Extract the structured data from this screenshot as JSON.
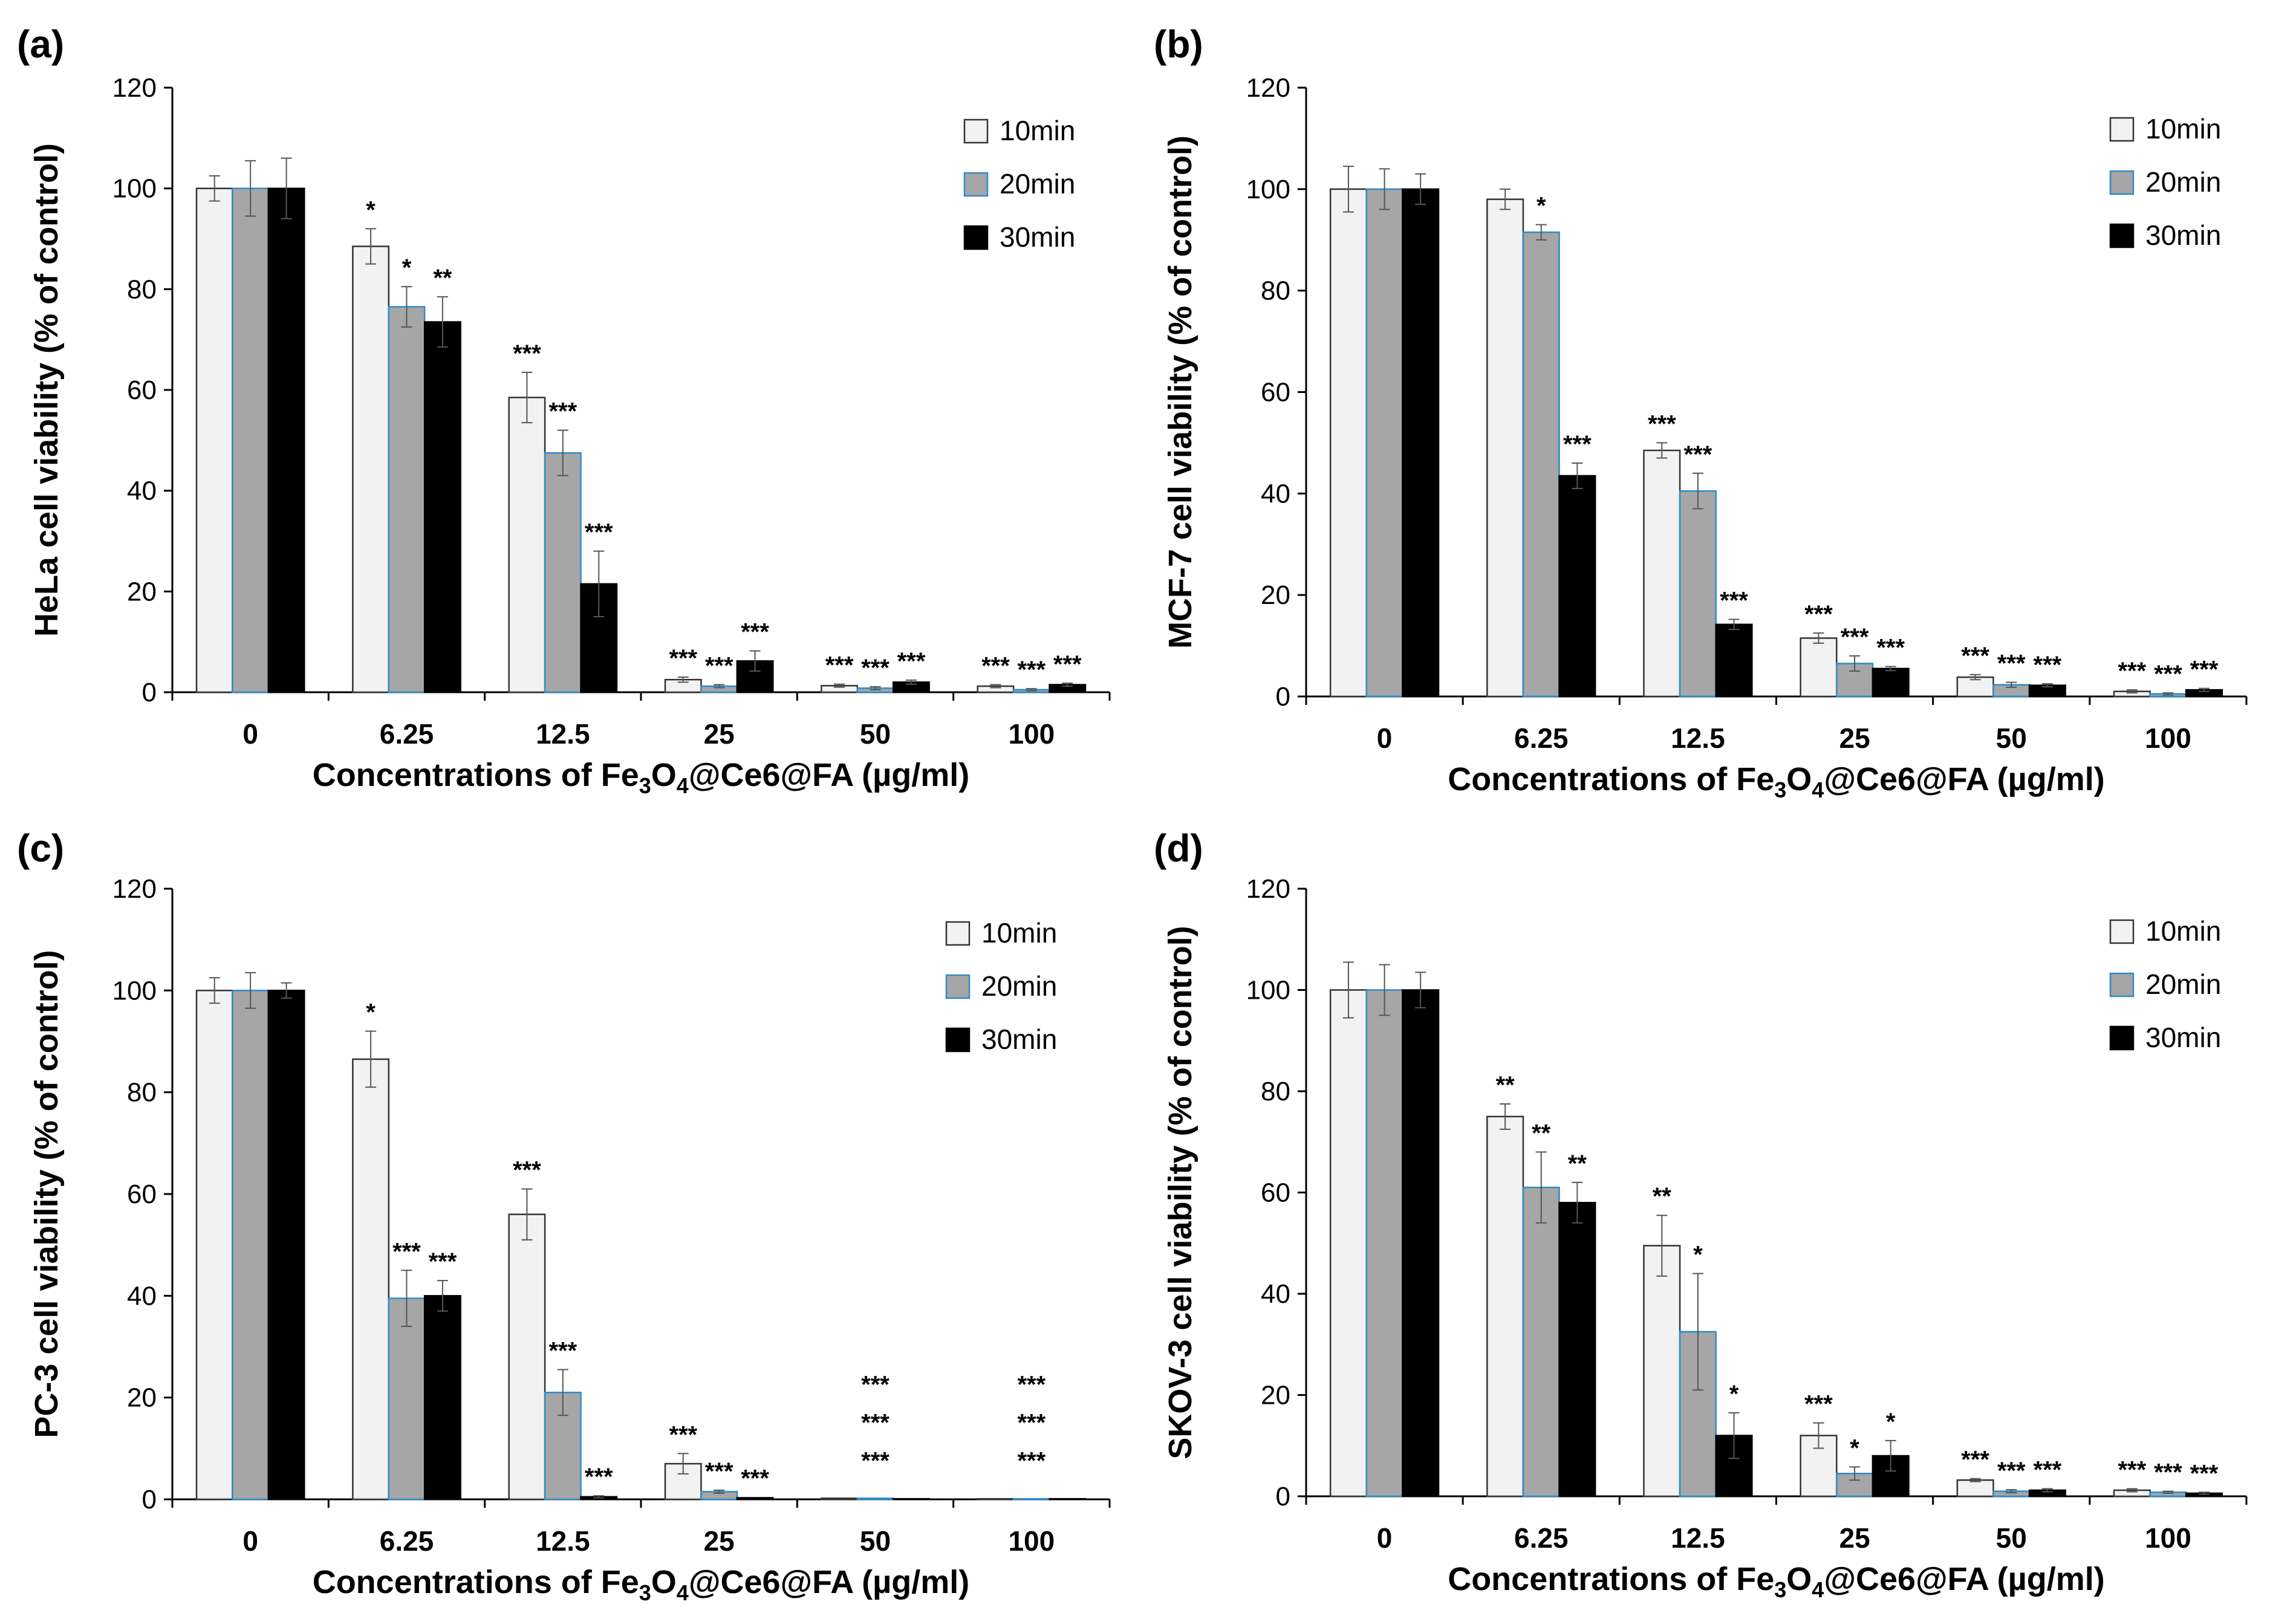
{
  "chart_data": [
    {
      "type": "bar",
      "panel_label": "(a)",
      "ylabel": "HeLa cell viability (% of control)",
      "xlabel": {
        "pre": "Concentrations of Fe",
        "sub1": "3",
        "mid": "O",
        "sub2": "4",
        "post": "@Ce6@FA (µg/ml)"
      },
      "categories": [
        "0",
        "6.25",
        "12.5",
        "25",
        "50",
        "100"
      ],
      "ylim": [
        0,
        120
      ],
      "yticks": [
        "0",
        "20",
        "40",
        "60",
        "80",
        "100",
        "120"
      ],
      "legend": [
        "10min",
        "20min",
        "30min"
      ],
      "series": [
        {
          "name": "10min",
          "values": [
            100,
            88.5,
            58.5,
            2.5,
            1.3,
            1.2
          ],
          "errors": [
            2.5,
            3.5,
            5,
            0.5,
            0.3,
            0.3
          ],
          "sig": [
            "",
            "*",
            "***",
            "***",
            "***",
            "***"
          ]
        },
        {
          "name": "20min",
          "values": [
            100,
            76.5,
            47.5,
            1.2,
            0.8,
            0.5
          ],
          "errors": [
            5.5,
            4,
            4.5,
            0.3,
            0.3,
            0.2
          ],
          "sig": [
            "",
            "*",
            "***",
            "***",
            "***",
            "***"
          ]
        },
        {
          "name": "30min",
          "values": [
            100,
            73.5,
            21.5,
            6.2,
            2.0,
            1.5
          ],
          "errors": [
            6,
            5,
            6.5,
            2,
            0.4,
            0.3
          ],
          "sig": [
            "",
            "**",
            "***",
            "***",
            "***",
            "***"
          ]
        }
      ]
    },
    {
      "type": "bar",
      "panel_label": "(b)",
      "ylabel": "MCF-7 cell viability (% of control)",
      "xlabel": {
        "pre": "Concentrations of Fe",
        "sub1": "3",
        "mid": "O",
        "sub2": "4",
        "post": "@Ce6@FA (µg/ml)"
      },
      "categories": [
        "0",
        "6.25",
        "12.5",
        "25",
        "50",
        "100"
      ],
      "ylim": [
        0,
        120
      ],
      "yticks": [
        "0",
        "20",
        "40",
        "60",
        "80",
        "100",
        "120"
      ],
      "legend": [
        "10min",
        "20min",
        "30min"
      ],
      "series": [
        {
          "name": "10min",
          "values": [
            100,
            98,
            48.5,
            11.5,
            3.8,
            1.0
          ],
          "errors": [
            4.5,
            2,
            1.5,
            1,
            0.5,
            0.3
          ],
          "sig": [
            "",
            "",
            "***",
            "***",
            "***",
            "***"
          ]
        },
        {
          "name": "20min",
          "values": [
            100,
            91.5,
            40.5,
            6.5,
            2.3,
            0.5
          ],
          "errors": [
            4,
            1.5,
            3.5,
            1.5,
            0.5,
            0.2
          ],
          "sig": [
            "",
            "*",
            "***",
            "***",
            "***",
            "***"
          ]
        },
        {
          "name": "30min",
          "values": [
            100,
            43.5,
            14.2,
            5.5,
            2.2,
            1.3
          ],
          "errors": [
            3,
            2.5,
            1,
            0.4,
            0.3,
            0.3
          ],
          "sig": [
            "",
            "***",
            "***",
            "***",
            "***",
            "***"
          ]
        }
      ]
    },
    {
      "type": "bar",
      "panel_label": "(c)",
      "ylabel": "PC-3 cell viability (% of control)",
      "xlabel": {
        "pre": "Concentrations of Fe",
        "sub1": "3",
        "mid": "O",
        "sub2": "4",
        "post": "@Ce6@FA (µg/ml)"
      },
      "categories": [
        "0",
        "6.25",
        "12.5",
        "25",
        "50",
        "100"
      ],
      "ylim": [
        0,
        120
      ],
      "yticks": [
        "0",
        "20",
        "40",
        "60",
        "80",
        "100",
        "120"
      ],
      "legend": [
        "10min",
        "20min",
        "30min"
      ],
      "series": [
        {
          "name": "10min",
          "values": [
            100,
            86.5,
            56,
            7,
            0.2,
            0.1
          ],
          "errors": [
            2.5,
            5.5,
            5,
            2,
            0.1,
            0.1
          ],
          "sig": [
            "",
            "*",
            "***",
            "***",
            "***",
            "***"
          ]
        },
        {
          "name": "20min",
          "values": [
            100,
            39.5,
            21,
            1.5,
            0.2,
            0.1
          ],
          "errors": [
            3.5,
            5.5,
            4.5,
            0.3,
            0.1,
            0.1
          ],
          "sig": [
            "",
            "***",
            "***",
            "***",
            "***",
            "***"
          ]
        },
        {
          "name": "30min",
          "values": [
            100,
            40,
            0.5,
            0.3,
            0.1,
            0.1
          ],
          "errors": [
            1.5,
            3,
            0.2,
            0.1,
            0.1,
            0.1
          ],
          "sig": [
            "",
            "***",
            "***",
            "***",
            "***",
            "***"
          ]
        }
      ]
    },
    {
      "type": "bar",
      "panel_label": "(d)",
      "ylabel": "SKOV-3 cell viability (% of control)",
      "xlabel": {
        "pre": "Concentrations of Fe",
        "sub1": "3",
        "mid": "O",
        "sub2": "4",
        "post": "@Ce6@FA (µg/ml)"
      },
      "categories": [
        "0",
        "6.25",
        "12.5",
        "25",
        "50",
        "100"
      ],
      "ylim": [
        0,
        120
      ],
      "yticks": [
        "0",
        "20",
        "40",
        "60",
        "80",
        "100",
        "120"
      ],
      "legend": [
        "10min",
        "20min",
        "30min"
      ],
      "series": [
        {
          "name": "10min",
          "values": [
            100,
            75,
            49.5,
            12,
            3.2,
            1.2
          ],
          "errors": [
            5.5,
            2.5,
            6,
            2.5,
            0.3,
            0.3
          ],
          "sig": [
            "",
            "**",
            "**",
            "***",
            "***",
            "***"
          ]
        },
        {
          "name": "20min",
          "values": [
            100,
            61,
            32.5,
            4.5,
            1.0,
            0.8
          ],
          "errors": [
            5,
            7,
            11.5,
            1.3,
            0.3,
            0.2
          ],
          "sig": [
            "",
            "**",
            "*",
            "*",
            "***",
            "***"
          ]
        },
        {
          "name": "30min",
          "values": [
            100,
            58,
            12,
            8,
            1.2,
            0.6
          ],
          "errors": [
            3.5,
            4,
            4.5,
            3,
            0.3,
            0.2
          ],
          "sig": [
            "",
            "**",
            "*",
            "*",
            "***",
            "***"
          ]
        }
      ]
    }
  ],
  "colors": {
    "s10": "#f2f2f2",
    "s20": "#a6a6a6",
    "s30": "#000000",
    "s20_edge": "#2e8bc8",
    "axis": "#000000"
  }
}
